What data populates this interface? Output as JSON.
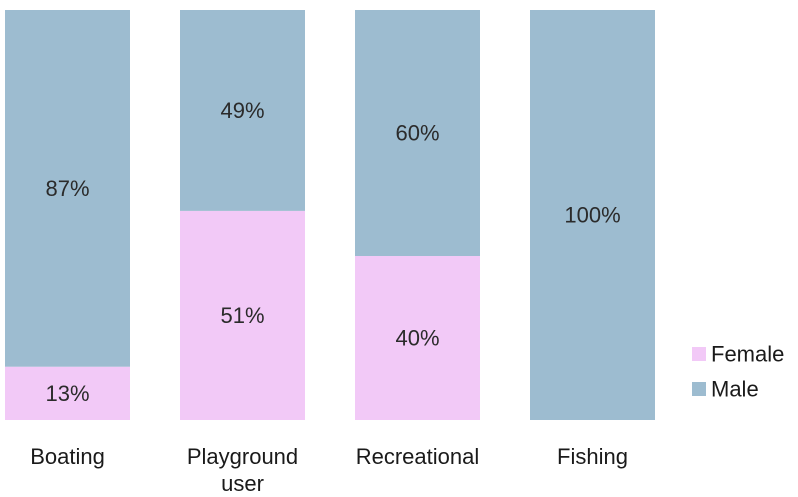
{
  "chart_data": {
    "type": "bar",
    "stacked": true,
    "percent": true,
    "title": "",
    "xlabel": "",
    "ylabel": "",
    "ylim": [
      0,
      100
    ],
    "grid": false,
    "legend_position": "bottom-right",
    "categories": [
      "Boating",
      "Playground user",
      "Recreational",
      "Fishing"
    ],
    "category_lines": [
      [
        "Boating"
      ],
      [
        "Playground",
        "user"
      ],
      [
        "Recreational"
      ],
      [
        "Fishing"
      ]
    ],
    "series": [
      {
        "name": "Female",
        "color": "#f2c9f7",
        "values": [
          13,
          51,
          40,
          0
        ],
        "labels": [
          "13%",
          "51%",
          "40%",
          ""
        ]
      },
      {
        "name": "Male",
        "color": "#9dbcd0",
        "values": [
          87,
          49,
          60,
          100
        ],
        "labels": [
          "87%",
          "49%",
          "60%",
          "100%"
        ]
      }
    ],
    "legend_order": [
      "Female",
      "Male"
    ]
  }
}
